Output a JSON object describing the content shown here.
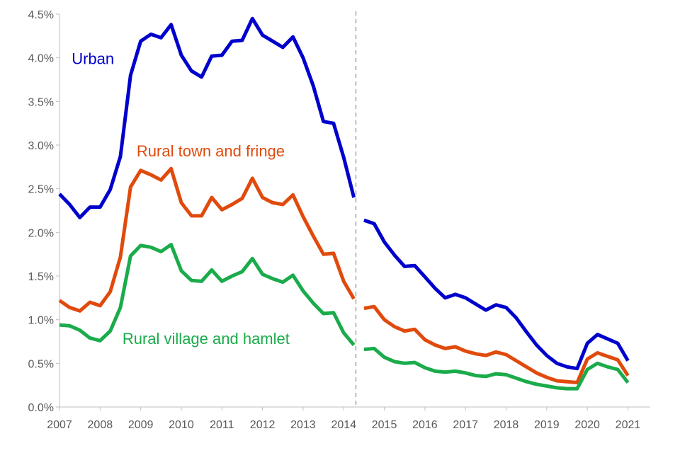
{
  "chart_data": {
    "type": "line",
    "title": "",
    "xlabel": "",
    "ylabel": "",
    "xlim": [
      2007,
      2021.55
    ],
    "ylim": [
      0,
      4.5
    ],
    "x_ticks": [
      2007,
      2008,
      2009,
      2010,
      2011,
      2012,
      2013,
      2014,
      2015,
      2016,
      2017,
      2018,
      2019,
      2020,
      2021
    ],
    "x_tick_labels": [
      "2007",
      "2008",
      "2009",
      "2010",
      "2011",
      "2012",
      "2013",
      "2014",
      "2015",
      "2016",
      "2017",
      "2018",
      "2019",
      "2020",
      "2021"
    ],
    "y_ticks": [
      0,
      0.5,
      1,
      1.5,
      2,
      2.5,
      3,
      3.5,
      4,
      4.5
    ],
    "y_tick_labels": [
      "0.0%",
      "0.5%",
      "1.0%",
      "1.5%",
      "2.0%",
      "2.5%",
      "3.0%",
      "3.5%",
      "4.0%",
      "4.5%"
    ],
    "grid": false,
    "break_x": 2014.3,
    "axis_color": "#bfbfbf",
    "break_color": "#a6a6a6",
    "series": [
      {
        "name": "Urban",
        "color": "#0000cc",
        "segments": [
          {
            "x": [
              2007.0,
              2007.25,
              2007.5,
              2007.75,
              2008.0,
              2008.25,
              2008.5,
              2008.75,
              2009.0,
              2009.25,
              2009.5,
              2009.75,
              2010.0,
              2010.25,
              2010.5,
              2010.75,
              2011.0,
              2011.25,
              2011.5,
              2011.75,
              2012.0,
              2012.25,
              2012.5,
              2012.75,
              2013.0,
              2013.25,
              2013.5,
              2013.75,
              2014.0,
              2014.25
            ],
            "y": [
              2.44,
              2.32,
              2.17,
              2.29,
              2.29,
              2.49,
              2.87,
              3.8,
              4.19,
              4.27,
              4.23,
              4.38,
              4.03,
              3.85,
              3.78,
              4.02,
              4.03,
              4.19,
              4.2,
              4.45,
              4.26,
              4.19,
              4.12,
              4.24,
              4.0,
              3.68,
              3.27,
              3.25,
              2.86,
              2.4
            ]
          },
          {
            "x": [
              2014.5,
              2014.75,
              2015.0,
              2015.25,
              2015.5,
              2015.75,
              2016.0,
              2016.25,
              2016.5,
              2016.75,
              2017.0,
              2017.25,
              2017.5,
              2017.75,
              2018.0,
              2018.25,
              2018.5,
              2018.75,
              2019.0,
              2019.25,
              2019.5,
              2019.75,
              2020.0,
              2020.25,
              2020.5,
              2020.75,
              2021.0
            ],
            "y": [
              2.14,
              2.1,
              1.89,
              1.74,
              1.61,
              1.62,
              1.49,
              1.36,
              1.25,
              1.29,
              1.25,
              1.18,
              1.11,
              1.17,
              1.14,
              1.02,
              0.86,
              0.71,
              0.59,
              0.5,
              0.46,
              0.44,
              0.73,
              0.83,
              0.78,
              0.73,
              0.53
            ]
          }
        ]
      },
      {
        "name": "Rural town and fringe",
        "color": "#e04a0c",
        "segments": [
          {
            "x": [
              2007.0,
              2007.25,
              2007.5,
              2007.75,
              2008.0,
              2008.25,
              2008.5,
              2008.75,
              2009.0,
              2009.25,
              2009.5,
              2009.75,
              2010.0,
              2010.25,
              2010.5,
              2010.75,
              2011.0,
              2011.25,
              2011.5,
              2011.75,
              2012.0,
              2012.25,
              2012.5,
              2012.75,
              2013.0,
              2013.25,
              2013.5,
              2013.75,
              2014.0,
              2014.25
            ],
            "y": [
              1.22,
              1.14,
              1.1,
              1.2,
              1.16,
              1.32,
              1.72,
              2.52,
              2.71,
              2.66,
              2.6,
              2.73,
              2.34,
              2.19,
              2.19,
              2.4,
              2.26,
              2.32,
              2.39,
              2.62,
              2.4,
              2.34,
              2.32,
              2.43,
              2.18,
              1.96,
              1.75,
              1.76,
              1.44,
              1.24
            ]
          },
          {
            "x": [
              2014.5,
              2014.75,
              2015.0,
              2015.25,
              2015.5,
              2015.75,
              2016.0,
              2016.25,
              2016.5,
              2016.75,
              2017.0,
              2017.25,
              2017.5,
              2017.75,
              2018.0,
              2018.25,
              2018.5,
              2018.75,
              2019.0,
              2019.25,
              2019.5,
              2019.75,
              2020.0,
              2020.25,
              2020.5,
              2020.75,
              2021.0
            ],
            "y": [
              1.13,
              1.15,
              1.0,
              0.92,
              0.87,
              0.89,
              0.77,
              0.71,
              0.67,
              0.69,
              0.64,
              0.61,
              0.59,
              0.63,
              0.6,
              0.53,
              0.46,
              0.39,
              0.34,
              0.3,
              0.29,
              0.28,
              0.55,
              0.62,
              0.58,
              0.54,
              0.36
            ]
          }
        ]
      },
      {
        "name": "Rural village and hamlet",
        "color": "#1aab4b",
        "segments": [
          {
            "x": [
              2007.0,
              2007.25,
              2007.5,
              2007.75,
              2008.0,
              2008.25,
              2008.5,
              2008.75,
              2009.0,
              2009.25,
              2009.5,
              2009.75,
              2010.0,
              2010.25,
              2010.5,
              2010.75,
              2011.0,
              2011.25,
              2011.5,
              2011.75,
              2012.0,
              2012.25,
              2012.5,
              2012.75,
              2013.0,
              2013.25,
              2013.5,
              2013.75,
              2014.0,
              2014.25
            ],
            "y": [
              0.94,
              0.93,
              0.88,
              0.79,
              0.76,
              0.87,
              1.14,
              1.73,
              1.85,
              1.83,
              1.78,
              1.86,
              1.56,
              1.45,
              1.44,
              1.57,
              1.44,
              1.5,
              1.55,
              1.7,
              1.52,
              1.47,
              1.43,
              1.51,
              1.33,
              1.19,
              1.07,
              1.08,
              0.85,
              0.71
            ]
          },
          {
            "x": [
              2014.5,
              2014.75,
              2015.0,
              2015.25,
              2015.5,
              2015.75,
              2016.0,
              2016.25,
              2016.5,
              2016.75,
              2017.0,
              2017.25,
              2017.5,
              2017.75,
              2018.0,
              2018.25,
              2018.5,
              2018.75,
              2019.0,
              2019.25,
              2019.5,
              2019.75,
              2020.0,
              2020.25,
              2020.5,
              2020.75,
              2021.0
            ],
            "y": [
              0.66,
              0.67,
              0.57,
              0.52,
              0.5,
              0.51,
              0.45,
              0.41,
              0.4,
              0.41,
              0.39,
              0.36,
              0.35,
              0.38,
              0.37,
              0.33,
              0.29,
              0.26,
              0.24,
              0.22,
              0.21,
              0.21,
              0.43,
              0.5,
              0.46,
              0.43,
              0.28
            ]
          }
        ]
      }
    ],
    "series_labels": [
      {
        "text": "Urban",
        "series": 0,
        "x": 2007.3,
        "y": 3.93
      },
      {
        "text": "Rural town and fringe",
        "series": 1,
        "x": 2008.9,
        "y": 2.87
      },
      {
        "text": "Rural village and hamlet",
        "series": 2,
        "x": 2008.55,
        "y": 0.72
      }
    ]
  }
}
